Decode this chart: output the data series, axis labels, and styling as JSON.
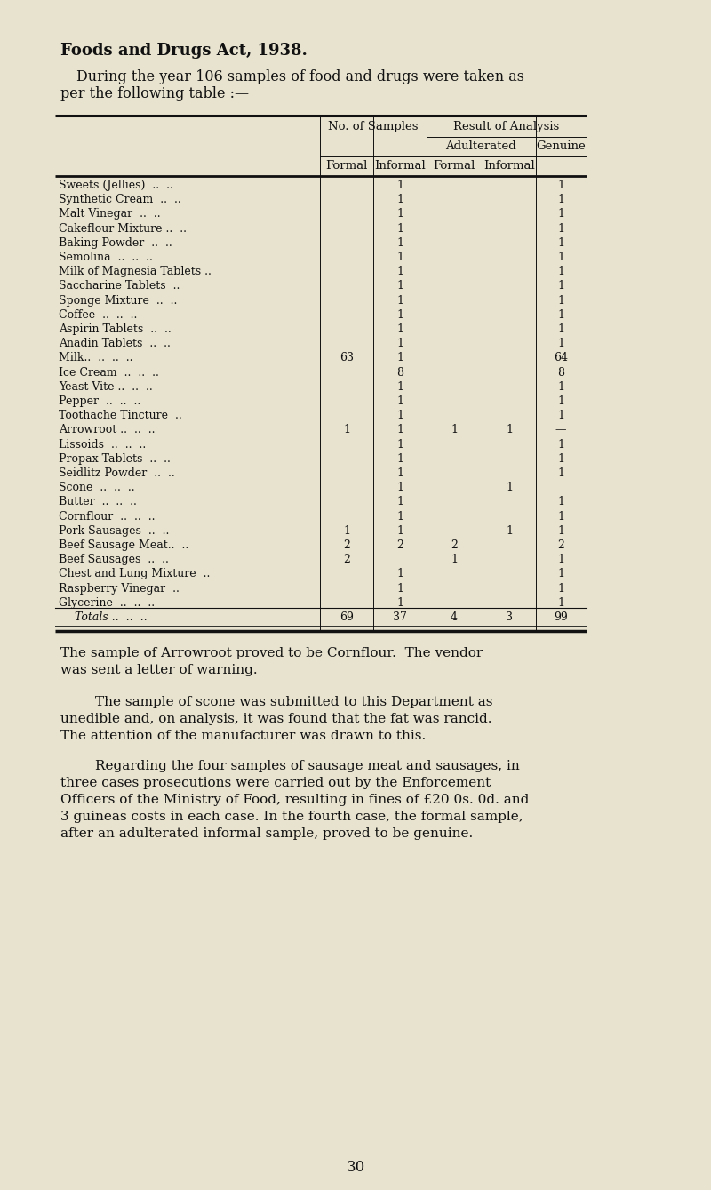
{
  "bg_color": "#e8e3cf",
  "title_bold": "Foods and Drugs Act, 1938.",
  "intro_line1": "During the year 106 samples of food and drugs were taken as",
  "intro_line2": "per the following table :—",
  "rows": [
    [
      "Sweets (Jellies)  ..  ..",
      "",
      "1",
      "",
      "",
      "1"
    ],
    [
      "Synthetic Cream  ..  ..",
      "",
      "1",
      "",
      "",
      "1"
    ],
    [
      "Malt Vinegar  ..  ..",
      "",
      "1",
      "",
      "",
      "1"
    ],
    [
      "Cakeflour Mixture ..  ..",
      "",
      "1",
      "",
      "",
      "1"
    ],
    [
      "Baking Powder  ..  ..",
      "",
      "1",
      "",
      "",
      "1"
    ],
    [
      "Semolina  ..  ..  ..",
      "",
      "1",
      "",
      "",
      "1"
    ],
    [
      "Milk of Magnesia Tablets ..",
      "",
      "1",
      "",
      "",
      "1"
    ],
    [
      "Saccharine Tablets  ..",
      "",
      "1",
      "",
      "",
      "1"
    ],
    [
      "Sponge Mixture  ..  ..",
      "",
      "1",
      "",
      "",
      "1"
    ],
    [
      "Coffee  ..  ..  ..",
      "",
      "1",
      "",
      "",
      "1"
    ],
    [
      "Aspirin Tablets  ..  ..",
      "",
      "1",
      "",
      "",
      "1"
    ],
    [
      "Anadin Tablets  ..  ..",
      "",
      "1",
      "",
      "",
      "1"
    ],
    [
      "Milk..  ..  ..  ..",
      "63",
      "1",
      "",
      "",
      "64"
    ],
    [
      "Ice Cream  ..  ..  ..",
      "",
      "8",
      "",
      "",
      "8"
    ],
    [
      "Yeast Vite ..  ..  ..",
      "",
      "1",
      "",
      "",
      "1"
    ],
    [
      "Pepper  ..  ..  ..",
      "",
      "1",
      "",
      "",
      "1"
    ],
    [
      "Toothache Tincture  ..",
      "",
      "1",
      "",
      "",
      "1"
    ],
    [
      "Arrowroot ..  ..  ..",
      "1",
      "1",
      "1",
      "1",
      "—"
    ],
    [
      "Lissoids  ..  ..  ..",
      "",
      "1",
      "",
      "",
      "1"
    ],
    [
      "Propax Tablets  ..  ..",
      "",
      "1",
      "",
      "",
      "1"
    ],
    [
      "Seidlitz Powder  ..  ..",
      "",
      "1",
      "",
      "",
      "1"
    ],
    [
      "Scone  ..  ..  ..",
      "",
      "1",
      "",
      "1",
      ""
    ],
    [
      "Butter  ..  ..  ..",
      "",
      "1",
      "",
      "",
      "1"
    ],
    [
      "Cornflour  ..  ..  ..",
      "",
      "1",
      "",
      "",
      "1"
    ],
    [
      "Pork Sausages  ..  ..",
      "1",
      "1",
      "",
      "1",
      "1"
    ],
    [
      "Beef Sausage Meat..  ..",
      "2",
      "2",
      "2",
      "",
      "2"
    ],
    [
      "Beef Sausages  ..  ..",
      "2",
      "",
      "1",
      "",
      "1"
    ],
    [
      "Chest and Lung Mixture  ..",
      "",
      "1",
      "",
      "",
      "1"
    ],
    [
      "Raspberry Vinegar  ..",
      "",
      "1",
      "",
      "",
      "1"
    ],
    [
      "Glycerine  ..  ..  ..",
      "",
      "1",
      "",
      "",
      "1"
    ]
  ],
  "totals_row": [
    "Totals ..  ..  ..",
    "69",
    "37",
    "4",
    "3",
    "99"
  ],
  "footnote1": "The sample of Arrowroot proved to be Cornflour.  The vendor was sent a letter of warning.",
  "footnote2": "The sample of scone was submitted to this Department as unedible and, on analysis, it was found that the fat was rancid. The attention of the manufacturer was drawn to this.",
  "footnote3": "Regarding the four samples of sausage meat and sausages, in three cases prosecutions were carried out by the Enforcement Officers of the Ministry of Food, resulting in fines of £20 0s. 0d. and 3 guineas costs in each case. In the fourth case, the formal sample, after an adulterated informal sample, proved to be genuine.",
  "page_number": "30"
}
